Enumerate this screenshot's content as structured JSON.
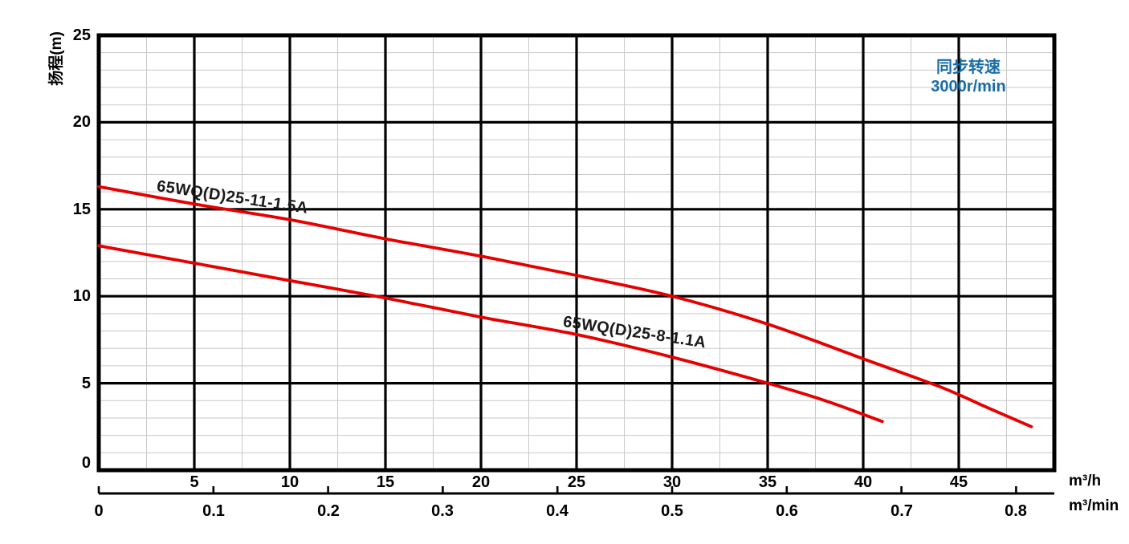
{
  "legend": {
    "line1": "同步转速",
    "line2": "3000r/min",
    "color": "#1a6ca6"
  },
  "axes": {
    "y_title": "扬程(m)",
    "x_unit_primary": "m³/h",
    "x_unit_secondary": "m³/min",
    "y_ticks": [
      0,
      5,
      10,
      15,
      20,
      25
    ],
    "x_ticks_h": [
      5,
      10,
      15,
      20,
      25,
      30,
      35,
      40,
      45
    ],
    "x_ticks_min": [
      "0",
      "0.1",
      "0.2",
      "0.3",
      "0.4",
      "0.5",
      "0.6",
      "0.7",
      "0.8"
    ]
  },
  "chart_data": {
    "type": "line",
    "title": "",
    "xlabel": "m³/h (secondary scale m³/min)",
    "ylabel": "扬程(m)",
    "xlim": [
      0,
      50
    ],
    "ylim": [
      0,
      25
    ],
    "x_major_step": 5,
    "x_minor_step": 2.5,
    "y_major_step": 5,
    "y_minor_step": 1,
    "grid": "on",
    "legend_position": "top-right",
    "legend_text": "同步转速 3000r/min",
    "secondary_x_scale_factor": 60,
    "curve_color": "#e60000",
    "series": [
      {
        "name": "65WQ(D)25-11-1.5A",
        "color": "#e60000",
        "points": [
          [
            0,
            16.3
          ],
          [
            5,
            15.3
          ],
          [
            10,
            14.4
          ],
          [
            15,
            13.3
          ],
          [
            20,
            12.3
          ],
          [
            25,
            11.2
          ],
          [
            30,
            10.0
          ],
          [
            35,
            8.4
          ],
          [
            40,
            6.4
          ],
          [
            44,
            4.8
          ],
          [
            46.5,
            3.6
          ],
          [
            48.8,
            2.5
          ]
        ]
      },
      {
        "name": "65WQ(D)25-8-1.1A",
        "color": "#e60000",
        "points": [
          [
            0,
            12.9
          ],
          [
            5,
            11.9
          ],
          [
            10,
            10.9
          ],
          [
            15,
            9.9
          ],
          [
            20,
            8.8
          ],
          [
            25,
            7.8
          ],
          [
            30,
            6.5
          ],
          [
            35,
            5.0
          ],
          [
            38,
            4.0
          ],
          [
            41,
            2.8
          ]
        ]
      }
    ]
  }
}
